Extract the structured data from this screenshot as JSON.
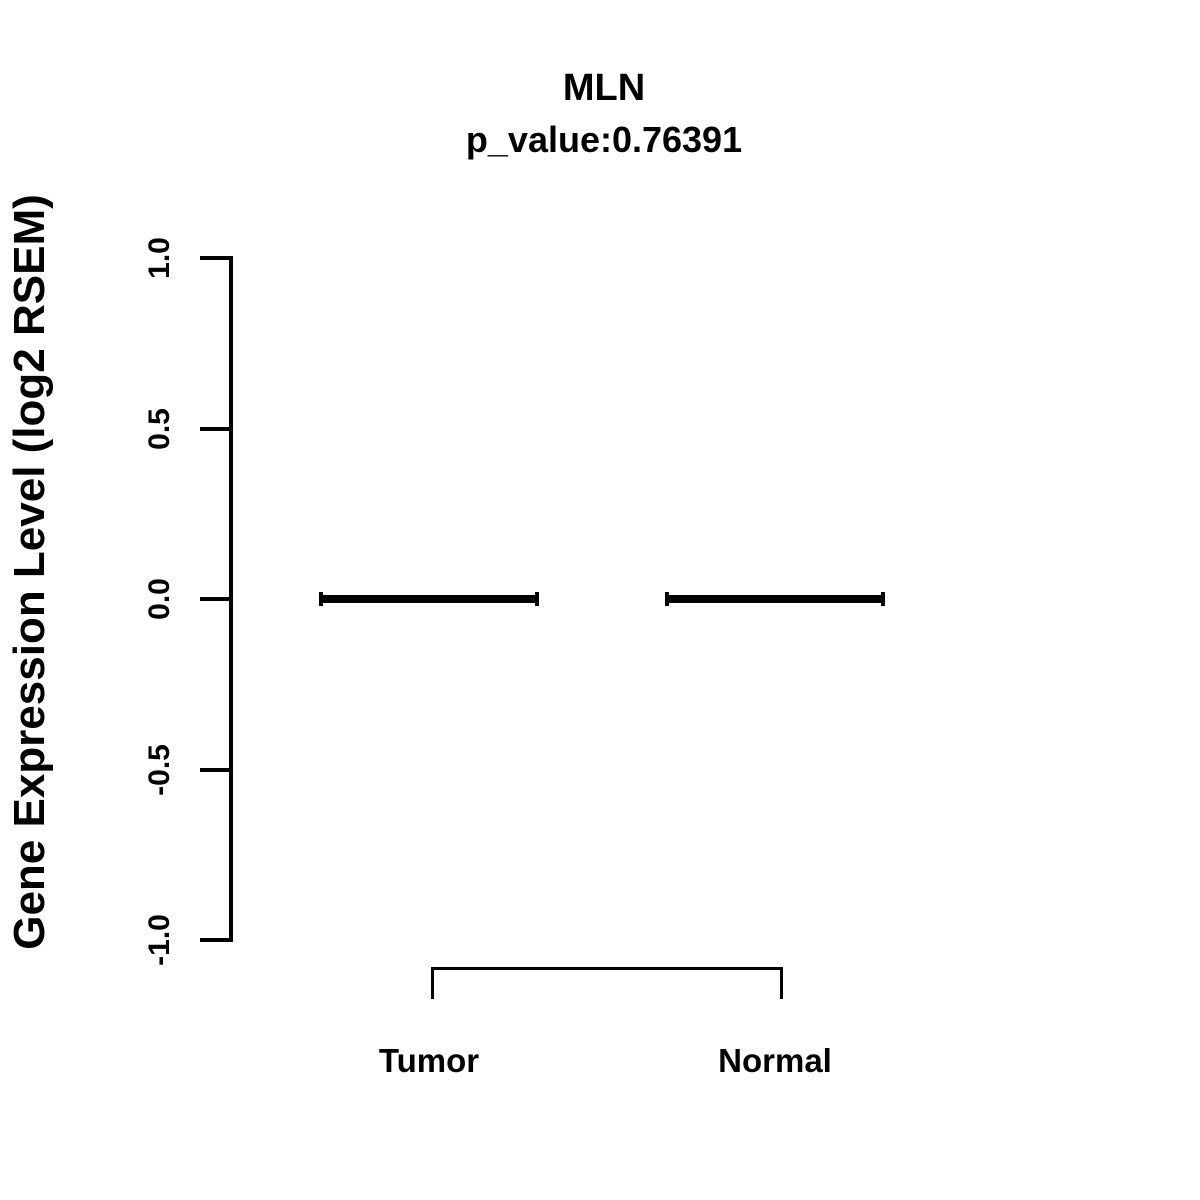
{
  "chart_data": {
    "type": "boxplot",
    "title": "MLN",
    "subtitle": "p_value:0.76391",
    "p_value": 0.76391,
    "ylabel": "Gene Expression Level (log2 RSEM)",
    "xlabel": "",
    "categories": [
      "Tumor",
      "Normal"
    ],
    "series": [
      {
        "name": "Tumor",
        "median": 0.0,
        "q1": 0.0,
        "q3": 0.0,
        "whisker_low": 0.0,
        "whisker_high": 0.0
      },
      {
        "name": "Normal",
        "median": 0.0,
        "q1": 0.0,
        "q3": 0.0,
        "whisker_low": 0.0,
        "whisker_high": 0.0
      }
    ],
    "ylim": [
      -1.0,
      1.0
    ],
    "yticks": [
      1.0,
      0.5,
      0.0,
      -0.5,
      -1.0
    ],
    "ytick_labels": [
      "1.0",
      "0.5",
      "0.0",
      "-0.5",
      "-1.0"
    ],
    "grid": false,
    "legend": "none",
    "comparison_bracket": {
      "from": "Tumor",
      "to": "Normal"
    },
    "colors": {
      "foreground": "#000000",
      "background": "#ffffff"
    }
  }
}
